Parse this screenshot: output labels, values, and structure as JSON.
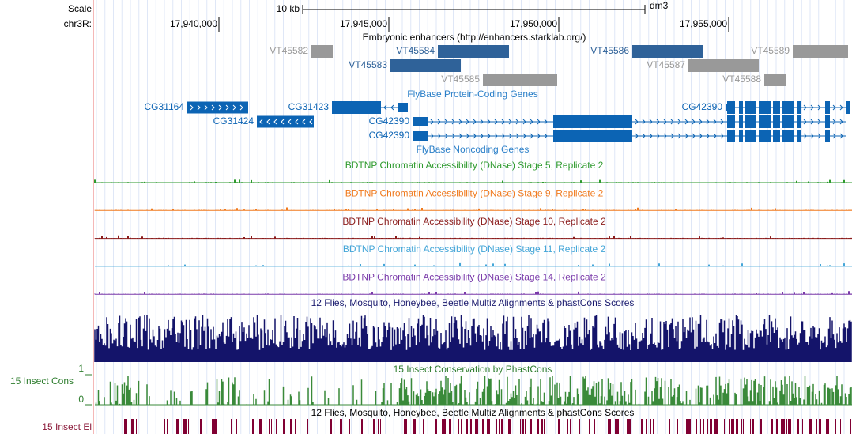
{
  "ruler": {
    "scale_label": "Scale",
    "scale_bar": "10 kb",
    "assembly": "dm3",
    "chrom_label": "chr3R:",
    "positions": [
      "17,940,000",
      "17,945,000",
      "17,950,000",
      "17,955,000"
    ]
  },
  "enhancers": {
    "title": "Embryonic enhancers (http://enhancers.starklab.org/)",
    "features": [
      {
        "label": "VT45582"
      },
      {
        "label": "VT45584"
      },
      {
        "label": "VT45586"
      },
      {
        "label": "VT45589"
      },
      {
        "label": "VT45583"
      },
      {
        "label": "VT45587"
      },
      {
        "label": "VT45585"
      },
      {
        "label": "VT45588"
      }
    ]
  },
  "genes": {
    "title": "FlyBase Protein-Coding Genes",
    "noncoding_title": "FlyBase Noncoding Genes",
    "features": [
      {
        "label": "CG31164"
      },
      {
        "label": "CG31423"
      },
      {
        "label": "CG31424"
      },
      {
        "label": "CG42390"
      },
      {
        "label": "CG42390"
      },
      {
        "label": "CG42390"
      }
    ]
  },
  "dnase_tracks": [
    {
      "title": "BDTNP Chromatin Accessibility (DNase) Stage 5, Replicate 2"
    },
    {
      "title": "BDTNP Chromatin Accessibility (DNase) Stage 9, Replicate 2"
    },
    {
      "title": "BDTNP Chromatin Accessibility (DNase) Stage 10, Replicate 2"
    },
    {
      "title": "BDTNP Chromatin Accessibility (DNase) Stage 11, Replicate 2"
    },
    {
      "title": "BDTNP Chromatin Accessibility (DNase) Stage 14, Replicate 2"
    }
  ],
  "multiz": {
    "title": "12 Flies, Mosquito, Honeybee, Beetle Multiz Alignments & phastCons Scores"
  },
  "conservation": {
    "side_label": "15 Insect Cons",
    "max_label": "1",
    "min_label": "0",
    "title": "15 Insect Conservation by PhastCons"
  },
  "elements": {
    "title": "12 Flies, Mosquito, Honeybee, Beetle Multiz Alignments & phastCons Scores",
    "side_label": "15 Insect El"
  }
}
